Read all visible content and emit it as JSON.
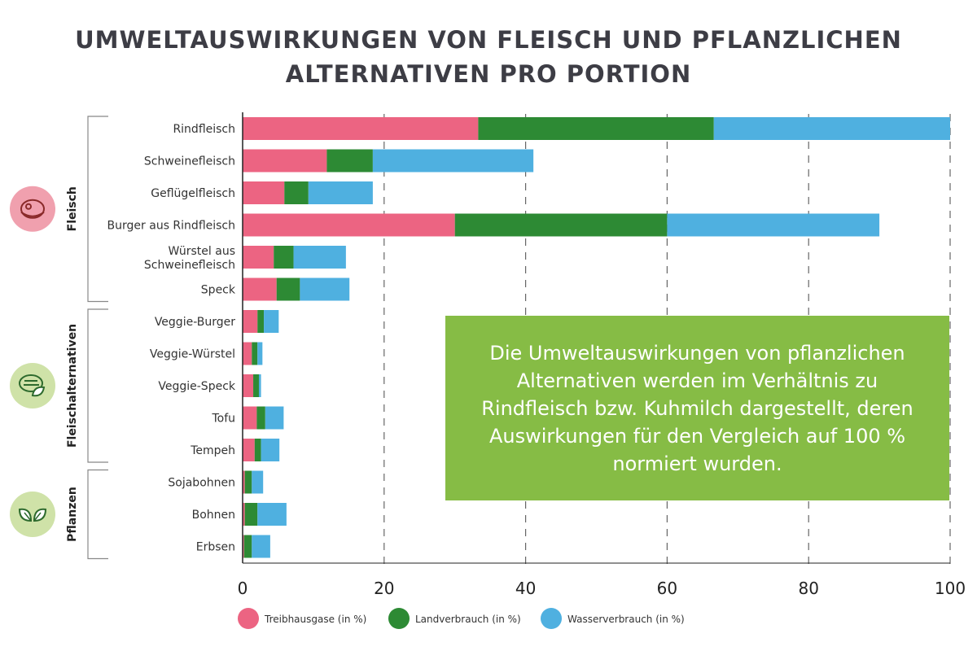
{
  "chart_data": {
    "type": "bar",
    "orientation": "horizontal",
    "stacked": true,
    "title": "UMWELTAUSWIRKUNGEN VON FLEISCH UND PFLANZLICHEN ALTERNATIVEN PRO PORTION",
    "xlim": [
      0,
      100
    ],
    "x_ticks": [
      "0",
      "20",
      "40",
      "60",
      "80",
      "100"
    ],
    "grid": "vertical dashed",
    "legend_position": "bottom",
    "categories": [
      "Rindfleisch",
      "Schweinefleisch",
      "Geflügelfleisch",
      "Burger aus Rindfleisch",
      "Würstel aus Schweinefleisch",
      "Speck",
      "Veggie-Burger",
      "Veggie-Würstel",
      "Veggie-Speck",
      "Tofu",
      "Tempeh",
      "Sojabohnen",
      "Bohnen",
      "Erbsen"
    ],
    "groups": [
      {
        "label": "Fleisch",
        "icon": "steak-icon",
        "color": "#f0a0ae",
        "count": 6
      },
      {
        "label": "Fleischalternativen",
        "icon": "veggie-patty-icon",
        "color": "#cfe2a8",
        "count": 5
      },
      {
        "label": "Pflanzen",
        "icon": "leaves-icon",
        "color": "#cfe2a8",
        "count": 3
      }
    ],
    "series": [
      {
        "name": "Treibhausgase (in %)",
        "color": "#ec6482",
        "values": [
          33.3,
          11.9,
          5.9,
          30.0,
          4.4,
          4.8,
          2.1,
          1.3,
          1.5,
          2.0,
          1.7,
          0.3,
          0.3,
          0.2
        ]
      },
      {
        "name": "Landverbrauch (in %)",
        "color": "#2d8a34",
        "values": [
          33.3,
          6.5,
          3.4,
          30.0,
          2.8,
          3.3,
          0.9,
          0.8,
          0.8,
          1.2,
          0.9,
          1.0,
          1.8,
          1.1
        ]
      },
      {
        "name": "Wasserverbrauch (in %)",
        "color": "#4fb0e0",
        "values": [
          33.4,
          22.7,
          9.1,
          30.0,
          7.4,
          7.0,
          2.1,
          0.7,
          0.3,
          2.6,
          2.6,
          1.6,
          4.1,
          2.6
        ]
      }
    ]
  },
  "callout": "Die Umweltauswirkungen von pflanzlichen Alternativen werden im Verhältnis zu Rindfleisch bzw. Kuhmilch dargestellt, deren Auswirkungen für den Vergleich auf 100 % normiert wurden.",
  "colors": {
    "title": "#3d3d45",
    "callout_bg": "#86bc45"
  }
}
